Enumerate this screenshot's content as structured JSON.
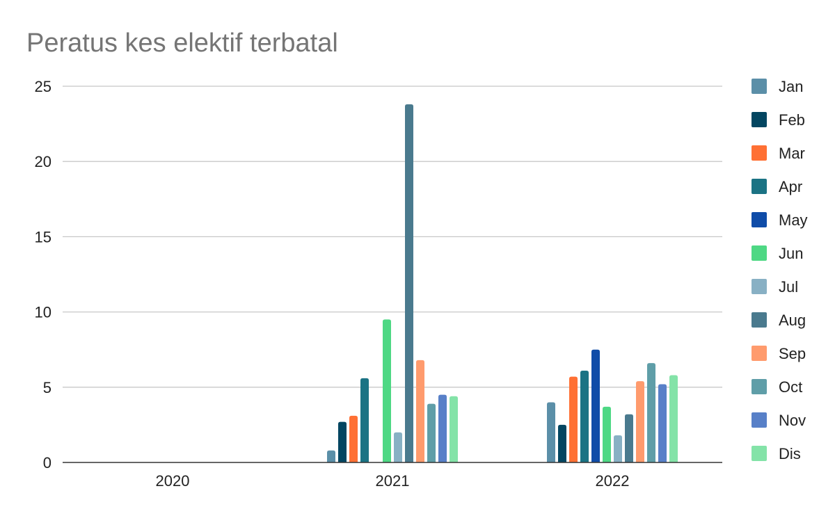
{
  "chart_data": {
    "type": "bar",
    "title": "Peratus kes elektif terbatal",
    "xlabel": "",
    "ylabel": "",
    "categories": [
      "2020",
      "2021",
      "2022"
    ],
    "ylim": [
      0,
      25
    ],
    "yticks": [
      0,
      5,
      10,
      15,
      20,
      25
    ],
    "grid": true,
    "legend_position": "right",
    "series": [
      {
        "name": "Jan",
        "color": "#5b8fa8",
        "values": [
          null,
          0.8,
          4.0
        ]
      },
      {
        "name": "Feb",
        "color": "#034661",
        "values": [
          null,
          2.7,
          2.5
        ]
      },
      {
        "name": "Mar",
        "color": "#ff7034",
        "values": [
          null,
          3.1,
          5.7
        ]
      },
      {
        "name": "Apr",
        "color": "#1b7384",
        "values": [
          null,
          5.6,
          6.1
        ]
      },
      {
        "name": "May",
        "color": "#0f4ca8",
        "values": [
          null,
          null,
          7.5
        ]
      },
      {
        "name": "Jun",
        "color": "#4ed884",
        "values": [
          null,
          9.5,
          3.7
        ]
      },
      {
        "name": "Jul",
        "color": "#88b0c4",
        "values": [
          null,
          2.0,
          1.8
        ]
      },
      {
        "name": "Aug",
        "color": "#4a7a8e",
        "values": [
          null,
          23.8,
          3.2
        ]
      },
      {
        "name": "Sep",
        "color": "#ff9b6d",
        "values": [
          null,
          6.8,
          5.4
        ]
      },
      {
        "name": "Oct",
        "color": "#5f9ea8",
        "values": [
          null,
          3.9,
          6.6
        ]
      },
      {
        "name": "Nov",
        "color": "#5880c8",
        "values": [
          null,
          4.5,
          5.2
        ]
      },
      {
        "name": "Dis",
        "color": "#84e3a8",
        "values": [
          null,
          4.4,
          5.8
        ]
      }
    ]
  }
}
